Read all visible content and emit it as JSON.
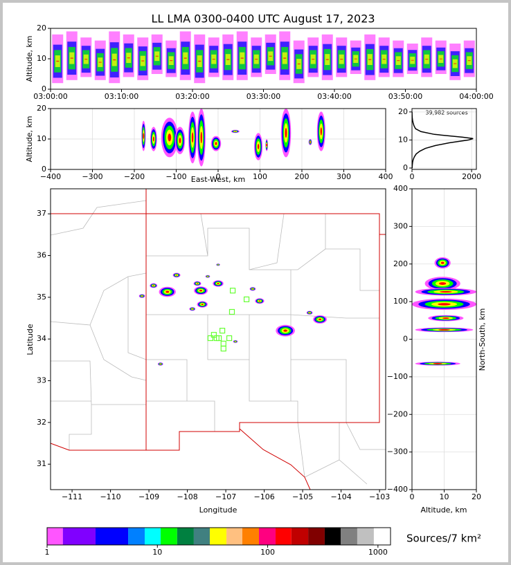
{
  "chart_data": [
    {
      "type": "scatter",
      "title": "LL LMA 0300-0400 UTC August 17, 2023",
      "ylabel": "Altitude, km",
      "xlim": [
        0,
        60
      ],
      "xticks": [
        {
          "value": 0,
          "label": "03:00:00"
        },
        {
          "value": 10,
          "label": "03:10:00"
        },
        {
          "value": 20,
          "label": "03:20:00"
        },
        {
          "value": 30,
          "label": "03:30:00"
        },
        {
          "value": 40,
          "label": "03:40:00"
        },
        {
          "value": 50,
          "label": "03:50:00"
        },
        {
          "value": 60,
          "label": "04:00:00"
        }
      ],
      "ylim": [
        0,
        20
      ],
      "yticks": [
        0,
        10,
        20
      ],
      "grid": false,
      "x": [
        1,
        3,
        5,
        7,
        9,
        11,
        13,
        15,
        17,
        19,
        21,
        23,
        25,
        27,
        29,
        31,
        33,
        35,
        37,
        39,
        41,
        43,
        45,
        47,
        49,
        51,
        53,
        55,
        57,
        59
      ],
      "low": [
        2,
        3,
        4,
        3,
        2,
        4,
        3,
        5,
        4,
        3,
        2,
        4,
        3,
        3,
        4,
        5,
        3,
        2,
        4,
        3,
        4,
        5,
        3,
        4,
        4,
        5,
        4,
        5,
        3,
        4
      ],
      "high": [
        18,
        19,
        17,
        16,
        19,
        18,
        17,
        18,
        16,
        19,
        18,
        17,
        18,
        19,
        17,
        18,
        19,
        16,
        17,
        18,
        17,
        16,
        18,
        17,
        16,
        15,
        17,
        16,
        15,
        16
      ]
    },
    {
      "type": "density",
      "ylabel": "Altitude, km",
      "xlabel": "East-West, km",
      "xlim": [
        -400,
        400
      ],
      "xticks": [
        {
          "value": -400,
          "label": "−400"
        },
        {
          "value": -300,
          "label": "−300"
        },
        {
          "value": -200,
          "label": "−200"
        },
        {
          "value": -100,
          "label": "−100"
        },
        0,
        100,
        200,
        300,
        400
      ],
      "ylim": [
        0,
        20
      ],
      "yticks": [
        0,
        10,
        20
      ],
      "grid": true,
      "x": [
        -178,
        -154,
        -116,
        -91,
        -61,
        -40,
        -5,
        41,
        96,
        116,
        162,
        220,
        246
      ],
      "hw": [
        5,
        8,
        20,
        12,
        10,
        10,
        12,
        10,
        10,
        3,
        12,
        4,
        10
      ],
      "low": [
        6,
        6,
        4,
        5,
        2,
        1,
        6,
        12,
        3,
        6,
        4,
        8,
        6
      ],
      "high": [
        16,
        14,
        17,
        14,
        19,
        20,
        11,
        13,
        12,
        10,
        20,
        10,
        19
      ]
    },
    {
      "type": "line",
      "annotation": "39,982 sources",
      "xlim": [
        0,
        2160
      ],
      "xticks": [
        0,
        2000
      ],
      "ylim": [
        -0.5,
        21.2
      ],
      "yticks": [
        0,
        10,
        20
      ],
      "grid": true,
      "x": [
        5,
        10,
        20,
        40,
        80,
        140,
        260,
        450,
        780,
        1250,
        1900,
        2050,
        1700,
        750,
        300,
        120,
        70,
        40,
        20,
        8,
        4,
        2
      ],
      "y": [
        0,
        1,
        2,
        3,
        4,
        5,
        6,
        7,
        8,
        9,
        10,
        10.5,
        11,
        12,
        13,
        14,
        15,
        16,
        17,
        18,
        19,
        20
      ]
    },
    {
      "type": "map",
      "xlabel": "Longitude",
      "ylabel": "Latitude",
      "xlim": [
        -111.56,
        -102.84
      ],
      "xticks": [
        {
          "value": -111,
          "label": "−111"
        },
        {
          "value": -110,
          "label": "−110"
        },
        {
          "value": -109,
          "label": "−109"
        },
        {
          "value": -108,
          "label": "−108"
        },
        {
          "value": -107,
          "label": "−107"
        },
        {
          "value": -106,
          "label": "−106"
        },
        {
          "value": -105,
          "label": "−105"
        },
        {
          "value": -104,
          "label": "−104"
        },
        {
          "value": -103,
          "label": "−103"
        }
      ],
      "ylim": [
        30.39,
        37.6
      ],
      "yticks": [
        31,
        32,
        33,
        34,
        35,
        36,
        37
      ],
      "grid": false,
      "lon": [
        -109.18,
        -108.88,
        -108.52,
        -108.28,
        -107.65,
        -107.61,
        -107.74,
        -107.87,
        -107.2,
        -107.47,
        -106.3,
        -106.12,
        -105.45,
        -104.55,
        -104.82,
        -108.7,
        -106.75,
        -107.2
      ],
      "lat": [
        35.03,
        35.28,
        35.13,
        35.53,
        35.16,
        34.83,
        35.33,
        34.72,
        35.33,
        35.5,
        35.2,
        34.91,
        34.2,
        34.47,
        34.63,
        33.4,
        33.94,
        35.78
      ],
      "size": [
        0.08,
        0.1,
        0.22,
        0.1,
        0.18,
        0.14,
        0.1,
        0.08,
        0.14,
        0.06,
        0.08,
        0.12,
        0.25,
        0.18,
        0.08,
        0.07,
        0.06,
        0.05
      ],
      "station_lon": [
        -107.31,
        -107.18,
        -107.09,
        -107.4,
        -107.06,
        -106.91,
        -107.06,
        -107.24,
        -106.82,
        -106.46,
        -106.84
      ],
      "station_lat": [
        34.1,
        34.02,
        34.2,
        34.02,
        33.89,
        34.02,
        33.77,
        34.02,
        35.16,
        34.95,
        34.65
      ],
      "station_color": "#66ff33"
    },
    {
      "type": "density",
      "xlabel": "Altitude, km",
      "ylabel": "North-South, km",
      "orient": "horizontal",
      "xlim": [
        0,
        20
      ],
      "xticks": [
        0,
        10,
        20
      ],
      "ylim": [
        -400,
        400
      ],
      "yticks": [
        {
          "value": -400,
          "label": "−400"
        },
        {
          "value": -300,
          "label": "−300"
        },
        {
          "value": -200,
          "label": "−200"
        },
        {
          "value": -100,
          "label": "−100"
        },
        0,
        100,
        200,
        300,
        400
      ],
      "grid": true,
      "y": [
        203,
        148,
        126,
        93,
        56,
        25,
        -65
      ],
      "h": [
        15,
        18,
        10,
        15,
        8,
        6,
        5
      ],
      "low": [
        7,
        4,
        1,
        0,
        5,
        1,
        1
      ],
      "high": [
        12,
        15,
        20,
        20,
        16,
        19,
        15
      ]
    },
    {
      "type": "colorbar",
      "label": "Sources/7 km²",
      "log": true,
      "xlim": [
        1,
        1300
      ],
      "xticks": [
        1,
        10,
        100,
        1000
      ],
      "bins": [
        1,
        1.39,
        2.75,
        5.43,
        7.68,
        10.7,
        15.1,
        21.4,
        29.9,
        42.3,
        58.9,
        83.4,
        118,
        164,
        233,
        329,
        459,
        649,
        918,
        1300
      ],
      "colors": [
        "#ff55ff",
        "#8000ff",
        "#0000ff",
        "#0080ff",
        "#00ffff",
        "#00ff00",
        "#008040",
        "#408080",
        "#ffff00",
        "#ffc080",
        "#ff8000",
        "#ff0080",
        "#ff0000",
        "#c00000",
        "#800000",
        "#000000",
        "#808080",
        "#c0c0c0",
        "#ffffff"
      ]
    }
  ]
}
